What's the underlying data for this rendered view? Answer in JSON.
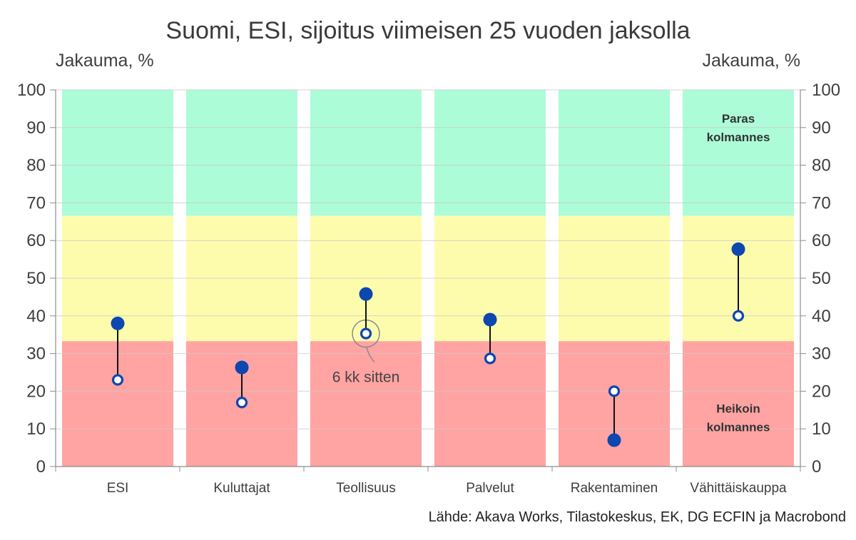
{
  "chart_data": {
    "type": "dumbbell",
    "title": "Suomi, ESI, sijoitus viimeisen 25 vuoden jaksolla",
    "ylabel_left": "Jakauma, %",
    "ylabel_right": "Jakauma, %",
    "ylim": [
      0,
      100
    ],
    "yticks": [
      0,
      10,
      20,
      30,
      40,
      50,
      60,
      70,
      80,
      90,
      100
    ],
    "categories": [
      "ESI",
      "Kuluttajat",
      "Teollisuus",
      "Palvelut",
      "Rakentaminen",
      "Vähittäiskauppa"
    ],
    "series": [
      {
        "values": [
          38,
          26.3,
          45.8,
          39,
          7,
          57.7
        ]
      },
      {
        "values": [
          23,
          17,
          35.3,
          28.7,
          20,
          40
        ]
      }
    ],
    "bands": [
      {
        "from": 0,
        "to": 33.3,
        "color": "#ffa3a3",
        "label": [
          "Heikoin",
          "kolmannes"
        ],
        "label_y": 13
      },
      {
        "from": 33.3,
        "to": 66.6,
        "color": "#fdfcad",
        "label": [],
        "label_y": 50
      },
      {
        "from": 66.6,
        "to": 100,
        "color": "#acfcd8",
        "label": [
          "Paras",
          "kolmannes"
        ],
        "label_y": 90
      }
    ],
    "band_label_category": 5,
    "annotation": {
      "text": "6 kk sitten",
      "category": 2,
      "value": 35.3
    },
    "grid": true,
    "colors": {
      "current": "#0d47b0",
      "previous_fill": "#ffffff",
      "previous_stroke": "#0d47b0",
      "connector": "#111111",
      "gridline": "#c9c9c9",
      "axis": "#8c8c8c"
    }
  },
  "source": "Lähde: Akava Works, Tilastokeskus, EK, DG ECFIN ja Macrobond"
}
